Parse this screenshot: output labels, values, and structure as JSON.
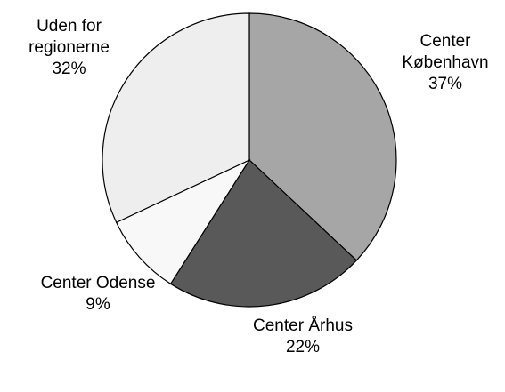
{
  "chart_data": {
    "type": "pie",
    "categories": [
      "Center København",
      "Center Århus",
      "Center Odense",
      "Uden for regionerne"
    ],
    "values": [
      37,
      22,
      9,
      32
    ],
    "value_labels": [
      "37%",
      "22%",
      "9%",
      "32%"
    ],
    "colors": [
      "#a6a6a6",
      "#595959",
      "#f8f8f8",
      "#eeeeee"
    ]
  }
}
